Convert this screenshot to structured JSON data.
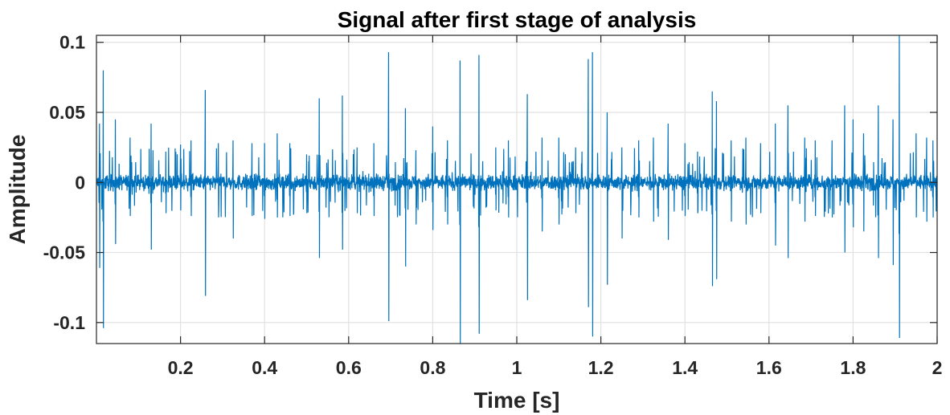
{
  "chart_data": {
    "type": "line",
    "title": "Signal after first stage of analysis",
    "xlabel": "Time [s]",
    "ylabel": "Amplitude",
    "xlim": [
      0,
      2
    ],
    "ylim": [
      -0.115,
      0.105
    ],
    "grid": true,
    "x_ticks": [
      0.2,
      0.4,
      0.6,
      0.8,
      1,
      1.2,
      1.4,
      1.6,
      1.8,
      2
    ],
    "x_tick_labels": [
      "0.2",
      "0.4",
      "0.6",
      "0.8",
      "1",
      "1.2",
      "1.4",
      "1.6",
      "1.8",
      "2"
    ],
    "y_ticks": [
      0.1,
      0.05,
      0,
      -0.05,
      -0.1
    ],
    "y_tick_labels": [
      "0.1",
      "0.05",
      "0",
      "-0.05",
      "-0.1"
    ],
    "series": [
      {
        "color": "#0072bd",
        "noise_amplitude": 0.01,
        "spikes": [
          [
            0.007,
            0.042,
            -0.061
          ],
          [
            0.016,
            0.08,
            -0.104
          ],
          [
            0.045,
            0.045,
            -0.044
          ],
          [
            0.08,
            0.032,
            -0.024
          ],
          [
            0.13,
            0.042,
            -0.048
          ],
          [
            0.165,
            0.022,
            -0.022
          ],
          [
            0.2,
            0.027,
            -0.02
          ],
          [
            0.225,
            0.03,
            -0.024
          ],
          [
            0.259,
            0.066,
            -0.081
          ],
          [
            0.29,
            0.028,
            -0.025
          ],
          [
            0.325,
            0.03,
            -0.04
          ],
          [
            0.37,
            0.028,
            -0.024
          ],
          [
            0.4,
            0.028,
            -0.026
          ],
          [
            0.43,
            0.035,
            -0.025
          ],
          [
            0.46,
            0.028,
            -0.024
          ],
          [
            0.5,
            0.02,
            -0.022
          ],
          [
            0.53,
            0.06,
            -0.054
          ],
          [
            0.585,
            0.062,
            -0.048
          ],
          [
            0.62,
            0.025,
            -0.022
          ],
          [
            0.66,
            0.028,
            -0.024
          ],
          [
            0.695,
            0.093,
            -0.099
          ],
          [
            0.735,
            0.053,
            -0.06
          ],
          [
            0.76,
            0.023,
            -0.03
          ],
          [
            0.8,
            0.04,
            -0.034
          ],
          [
            0.835,
            0.03,
            -0.03
          ],
          [
            0.865,
            0.087,
            -0.115
          ],
          [
            0.91,
            0.091,
            -0.108
          ],
          [
            0.95,
            0.025,
            -0.02
          ],
          [
            0.98,
            0.03,
            -0.025
          ],
          [
            1.025,
            0.063,
            -0.084
          ],
          [
            1.06,
            0.032,
            -0.035
          ],
          [
            1.1,
            0.032,
            -0.03
          ],
          [
            1.14,
            0.025,
            -0.022
          ],
          [
            1.17,
            0.088,
            -0.089
          ],
          [
            1.18,
            0.093,
            -0.11
          ],
          [
            1.215,
            0.05,
            -0.073
          ],
          [
            1.25,
            0.025,
            -0.04
          ],
          [
            1.29,
            0.03,
            -0.025
          ],
          [
            1.325,
            0.032,
            -0.028
          ],
          [
            1.36,
            0.042,
            -0.041
          ],
          [
            1.4,
            0.028,
            -0.024
          ],
          [
            1.43,
            0.022,
            -0.022
          ],
          [
            1.465,
            0.065,
            -0.074
          ],
          [
            1.475,
            0.058,
            -0.069
          ],
          [
            1.51,
            0.03,
            -0.028
          ],
          [
            1.545,
            0.032,
            -0.03
          ],
          [
            1.58,
            0.028,
            -0.022
          ],
          [
            1.615,
            0.042,
            -0.045
          ],
          [
            1.645,
            0.055,
            -0.054
          ],
          [
            1.685,
            0.032,
            -0.028
          ],
          [
            1.71,
            0.03,
            -0.024
          ],
          [
            1.75,
            0.03,
            -0.025
          ],
          [
            1.78,
            0.055,
            -0.05
          ],
          [
            1.8,
            0.045,
            -0.032
          ],
          [
            1.825,
            0.035,
            -0.035
          ],
          [
            1.86,
            0.055,
            -0.054
          ],
          [
            1.895,
            0.045,
            -0.059
          ],
          [
            1.91,
            0.105,
            -0.111
          ],
          [
            1.95,
            0.035,
            -0.025
          ],
          [
            1.975,
            0.032,
            -0.028
          ],
          [
            1.99,
            0.03,
            -0.025
          ]
        ]
      }
    ]
  }
}
